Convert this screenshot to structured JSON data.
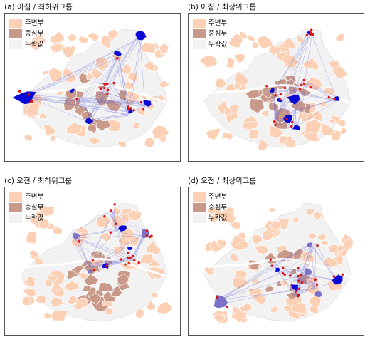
{
  "colors": {
    "periphery": "#fcd0b4",
    "center": "#c99a8a",
    "missing": "#f2f2f2",
    "flow_line": "#4f54d8",
    "hotspot_strong": "#0a0ad8",
    "hotspot_soft": "#7c72c9",
    "point": "#e01010"
  },
  "legend": {
    "periphery": "주변부",
    "center": "중심부",
    "missing": "누락값"
  },
  "panels": [
    {
      "id": "a",
      "title": "(a) 아침 / 최하위그룹"
    },
    {
      "id": "b",
      "title": "(b) 아침 / 최상위그룹"
    },
    {
      "id": "c",
      "title": "(c) 오전 / 최하위그룹"
    },
    {
      "id": "d",
      "title": "(d) 오전 / 최상위그룹"
    }
  ]
}
